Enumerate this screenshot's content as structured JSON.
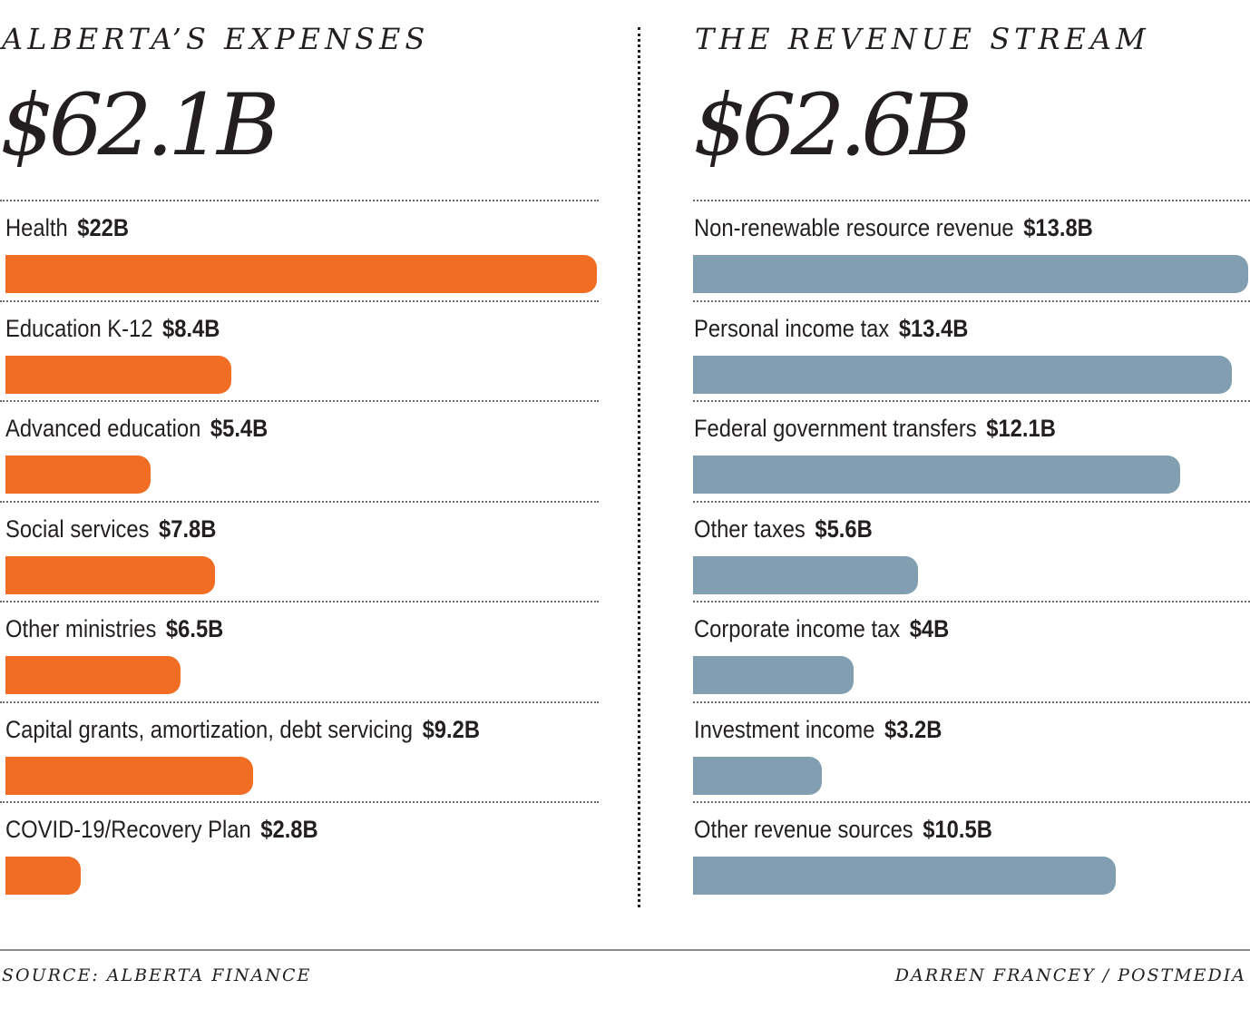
{
  "chart_data": [
    {
      "type": "bar",
      "orientation": "horizontal",
      "title": "ALBERTA’S EXPENSES",
      "total_label": "$62.1B",
      "color": "#f26d24",
      "categories": [
        "Health",
        "Education K-12",
        "Advanced education",
        "Social services",
        "Other ministries",
        "Capital grants, amortization, debt servicing",
        "COVID-19/Recovery Plan"
      ],
      "values": [
        22,
        8.4,
        5.4,
        7.8,
        6.5,
        9.2,
        2.8
      ],
      "value_labels": [
        "$22B",
        "$8.4B",
        "$5.4B",
        "$7.8B",
        "$6.5B",
        "$9.2B",
        "$2.8B"
      ],
      "unit": "billions CAD",
      "xlabel": "",
      "ylabel": "",
      "grid": false
    },
    {
      "type": "bar",
      "orientation": "horizontal",
      "title": "THE REVENUE STREAM",
      "total_label": "$62.6B",
      "color": "#819fb0",
      "categories": [
        "Non-renewable resource revenue",
        "Personal income tax",
        "Federal government transfers",
        "Other taxes",
        "Corporate income tax",
        "Investment income",
        "Other revenue sources"
      ],
      "values": [
        13.8,
        13.4,
        12.1,
        5.6,
        4,
        3.2,
        10.5
      ],
      "value_labels": [
        "$13.8B",
        "$13.4B",
        "$12.1B",
        "$5.6B",
        "$4B",
        "$3.2B",
        "$10.5B"
      ],
      "unit": "billions CAD",
      "xlabel": "",
      "ylabel": "",
      "grid": false
    }
  ],
  "footer": {
    "source": "SOURCE: ALBERTA FINANCE",
    "credit": "DARREN FRANCEY / POSTMEDIA"
  }
}
